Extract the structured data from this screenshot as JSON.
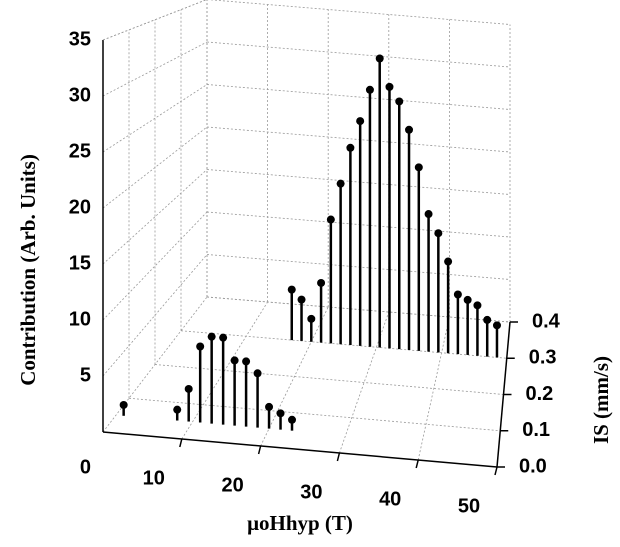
{
  "chart_data": {
    "type": "stem3d",
    "xlabel": "μoHhyp (T)",
    "ylabel": "IS (mm/s)",
    "zlabel": "Contribution (Arb. Units)",
    "xlim": [
      0,
      50
    ],
    "xticks": [
      10,
      20,
      30,
      40,
      50
    ],
    "ylim": [
      0,
      0.4
    ],
    "yticks": [
      {
        "value": 0,
        "label": "0.0"
      },
      0.1,
      0.2,
      0.3,
      0.4
    ],
    "zlim": [
      0,
      35
    ],
    "zticks": [
      0,
      5,
      10,
      15,
      20,
      25,
      30,
      35
    ],
    "grid": true,
    "color": "#000000",
    "series": [
      {
        "y": 0.05,
        "x": [
          1,
          8,
          9.5,
          11,
          12.5,
          14,
          15.5,
          17,
          18.5,
          20,
          21.5,
          23
        ],
        "values": [
          1,
          1,
          3,
          7,
          8,
          8,
          6,
          6,
          5,
          2,
          1.5,
          1
        ]
      },
      {
        "y": 0.3,
        "x": [
          17,
          18.5,
          20,
          21.5,
          23,
          24.5,
          26,
          27.5,
          29,
          30.5,
          32,
          33.5,
          35,
          36.5,
          38,
          39.5,
          41,
          42.5,
          44,
          45.5,
          47,
          48.5
        ],
        "values": [
          5.5,
          4.5,
          2.5,
          6.5,
          13.5,
          17.5,
          21.5,
          24.5,
          28,
          31.5,
          28.5,
          27,
          24,
          20,
          15,
          13,
          10,
          6.5,
          6,
          5.5,
          4,
          3.5
        ]
      }
    ]
  }
}
